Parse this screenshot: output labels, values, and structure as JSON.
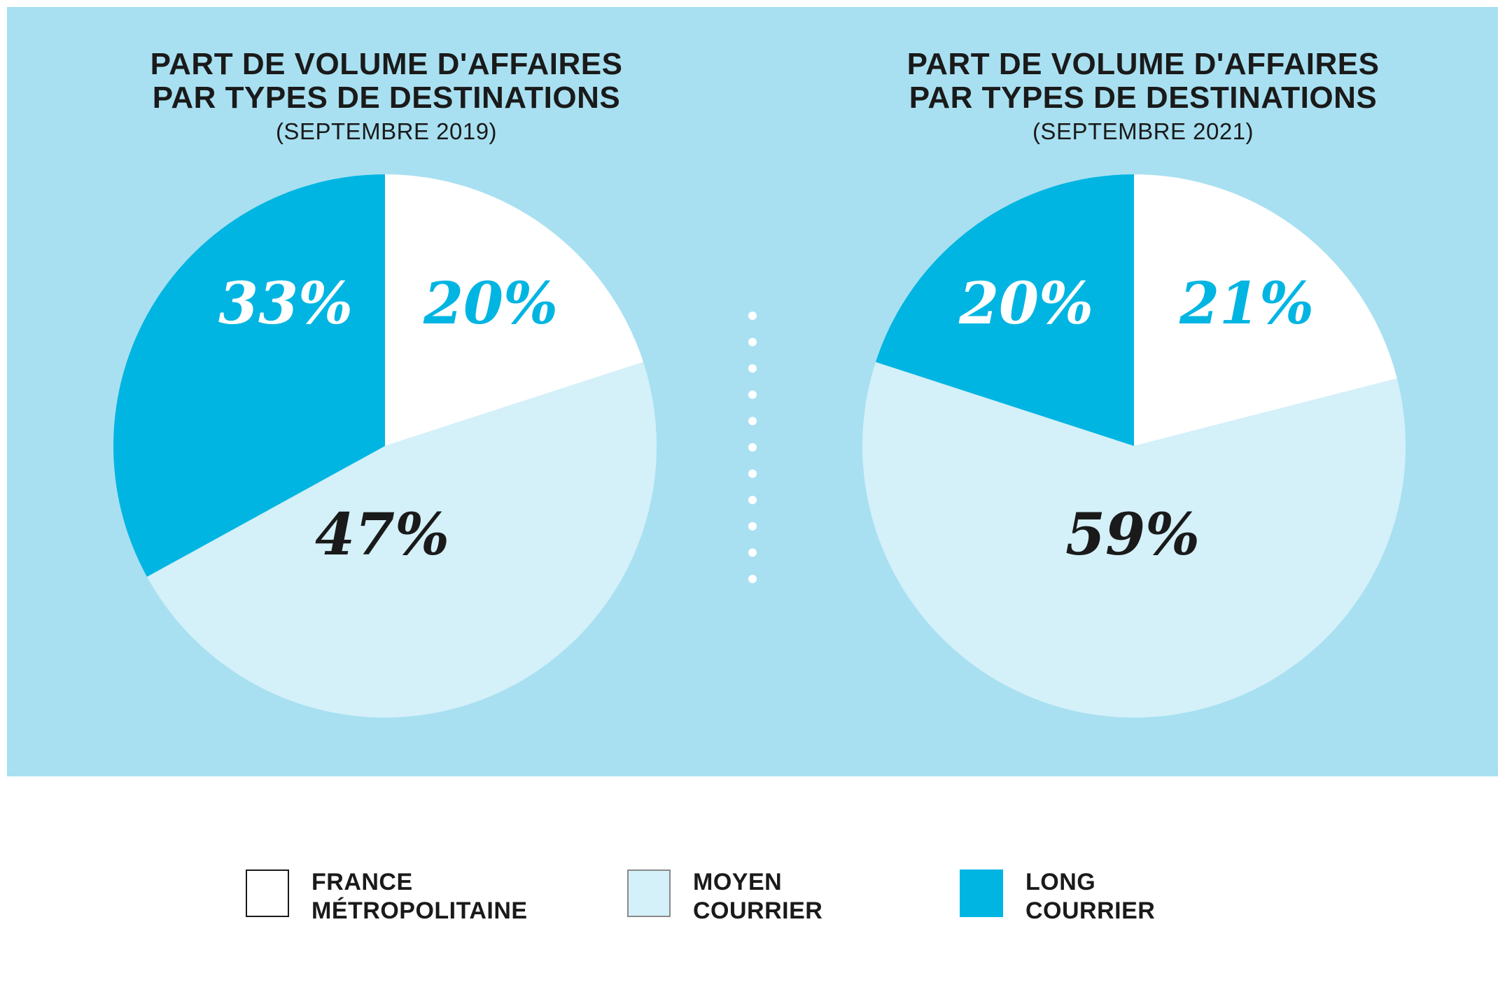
{
  "colors": {
    "panel": "#a8e0f1",
    "france": "#ffffff",
    "moyen": "#d4f0f9",
    "long": "#00b5e2",
    "dark_text": "#1a1a1a",
    "light_text": "#ffffff",
    "accent_text": "#00b5e2"
  },
  "chart_data": [
    {
      "type": "pie",
      "title": "PART DE VOLUME D'AFFAIRES",
      "title_line2": "PAR TYPES DE DESTINATIONS",
      "subtitle": "(SEPTEMBRE 2019)",
      "slices": [
        {
          "name": "FRANCE MÉTROPOLITAINE",
          "value": 20,
          "label": "20%"
        },
        {
          "name": "MOYEN COURRIER",
          "value": 47,
          "label": "47%"
        },
        {
          "name": "LONG COURRIER",
          "value": 33,
          "label": "33%"
        }
      ]
    },
    {
      "type": "pie",
      "title": "PART DE VOLUME D'AFFAIRES",
      "title_line2": "PAR TYPES DE DESTINATIONS",
      "subtitle": "(SEPTEMBRE 2021)",
      "slices": [
        {
          "name": "FRANCE MÉTROPOLITAINE",
          "value": 21,
          "label": "21%"
        },
        {
          "name": "MOYEN COURRIER",
          "value": 59,
          "label": "59%"
        },
        {
          "name": "LONG COURRIER",
          "value": 20,
          "label": "20%"
        }
      ]
    }
  ],
  "legend": [
    {
      "key": "france",
      "line1": "FRANCE",
      "line2": "MÉTROPOLITAINE"
    },
    {
      "key": "moyen",
      "line1": "MOYEN",
      "line2": "COURRIER"
    },
    {
      "key": "long",
      "line1": "LONG",
      "line2": "COURRIER"
    }
  ]
}
